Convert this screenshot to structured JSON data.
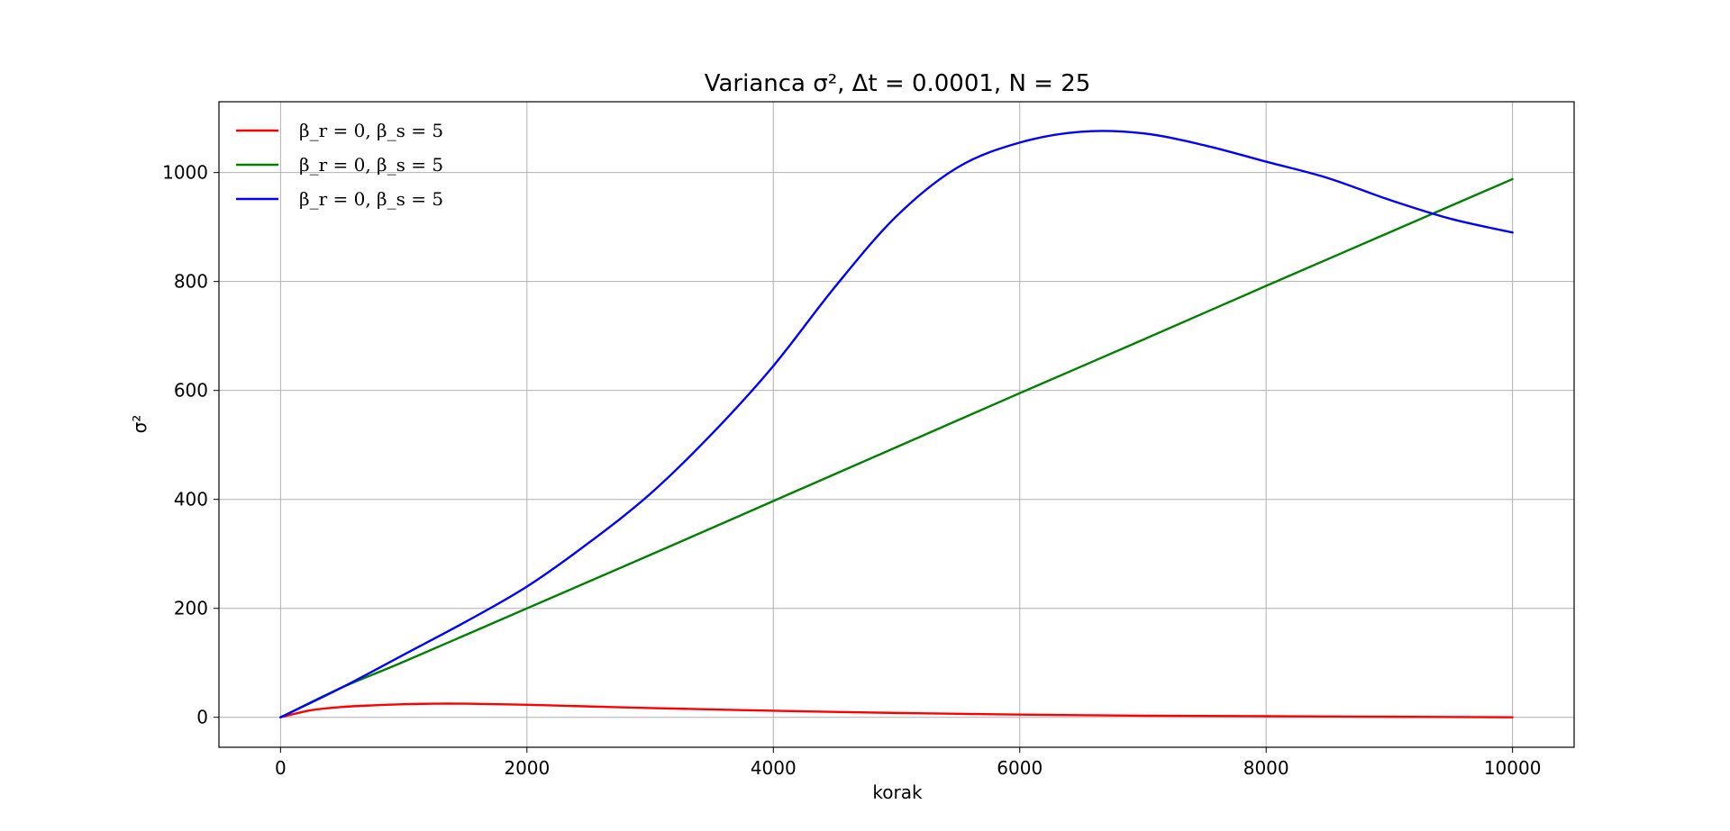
{
  "chart_data": {
    "type": "line",
    "title": "Varianca σ², Δt = 0.0001, N = 25",
    "xlabel": "korak",
    "ylabel": "σ²",
    "xlim": [
      -500,
      10500
    ],
    "ylim": [
      -55,
      1130
    ],
    "xticks": [
      0,
      2000,
      4000,
      6000,
      8000,
      10000
    ],
    "yticks": [
      0,
      200,
      400,
      600,
      800,
      1000
    ],
    "xtick_labels": [
      "0",
      "2000",
      "4000",
      "6000",
      "8000",
      "10000"
    ],
    "ytick_labels": [
      "0",
      "200",
      "400",
      "600",
      "800",
      "1000"
    ],
    "grid": true,
    "legend_position": "top-left",
    "series": [
      {
        "name": "β_r = 0, β_s = 5",
        "color": "#ff0000",
        "x": [
          0,
          250,
          500,
          750,
          1000,
          1250,
          1500,
          2000,
          2500,
          3000,
          4000,
          5000,
          6000,
          7000,
          8000,
          9000,
          10000
        ],
        "y": [
          0,
          13,
          19,
          22,
          24,
          25,
          25,
          23,
          20,
          17,
          12,
          8,
          5,
          3,
          2,
          1,
          0
        ]
      },
      {
        "name": "β_r = 0, β_s = 5",
        "color": "#008000",
        "x": [
          0,
          500,
          1000,
          2000,
          3000,
          4000,
          5000,
          6000,
          7000,
          8000,
          9000,
          10000
        ],
        "y": [
          0,
          55,
          102,
          200,
          298,
          397,
          496,
          595,
          693,
          792,
          890,
          988
        ]
      },
      {
        "name": "β_r = 0, β_s = 5",
        "color": "#0000ff",
        "x": [
          0,
          500,
          1000,
          1500,
          2000,
          2500,
          3000,
          3500,
          4000,
          4500,
          5000,
          5500,
          6000,
          6500,
          7000,
          7500,
          8000,
          8500,
          9000,
          9500,
          10000
        ],
        "y": [
          0,
          55,
          115,
          175,
          240,
          320,
          410,
          520,
          645,
          790,
          920,
          1010,
          1055,
          1075,
          1072,
          1050,
          1020,
          990,
          950,
          915,
          890
        ]
      }
    ]
  }
}
